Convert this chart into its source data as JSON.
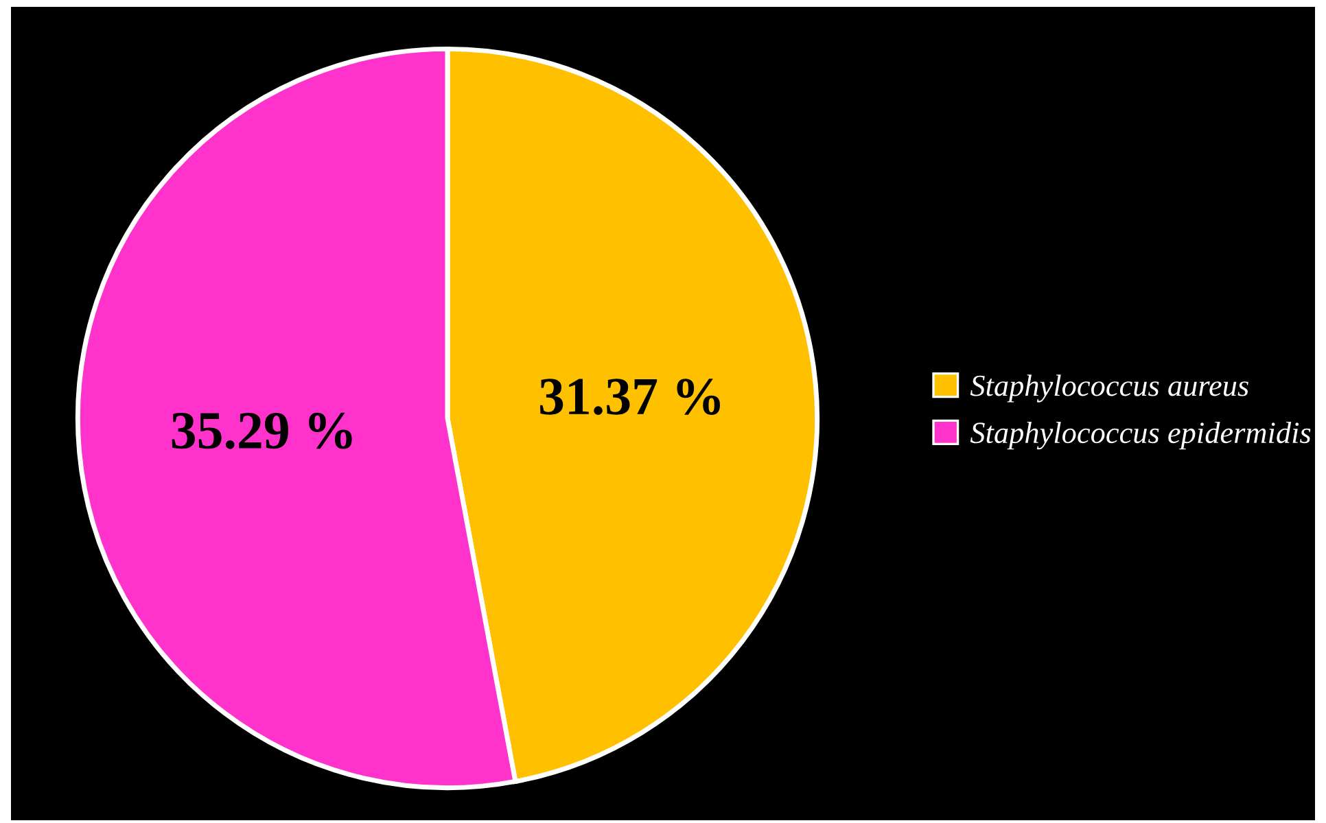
{
  "chart_data": {
    "type": "pie",
    "categories": [
      "Staphylococcus aureus",
      "Staphylococcus epidermidis"
    ],
    "values": [
      31.37,
      35.29
    ],
    "colors": [
      "#ffc000",
      "#ff33cc"
    ],
    "value_labels": [
      "31.37 %",
      "35.29 %"
    ],
    "legend": "right"
  }
}
